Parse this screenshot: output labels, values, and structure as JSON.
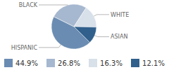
{
  "chart_data": {
    "type": "pie",
    "categories": [
      "HISPANIC",
      "BLACK",
      "WHITE",
      "ASIAN"
    ],
    "values": [
      44.9,
      26.8,
      16.3,
      12.1
    ],
    "value_labels": [
      "44.9%",
      "26.8%",
      "16.3%",
      "12.1%"
    ],
    "colors": [
      "#6b8cb2",
      "#a6b8cf",
      "#d8e0ea",
      "#31608c"
    ],
    "legend": "bottom"
  }
}
